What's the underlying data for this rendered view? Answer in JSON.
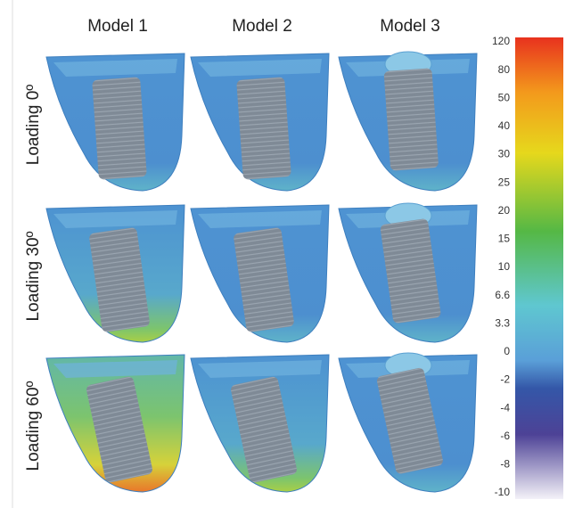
{
  "columns": [
    "Model 1",
    "Model 2",
    "Model 3"
  ],
  "rows": [
    "Loading 0º",
    "Loading 30º",
    "Loading 60º"
  ],
  "colorbar": {
    "labels": [
      120,
      80,
      50,
      40,
      30,
      25,
      20,
      15,
      10,
      6.6,
      3.3,
      0,
      -2,
      -4,
      -6,
      -8,
      -10
    ]
  }
}
